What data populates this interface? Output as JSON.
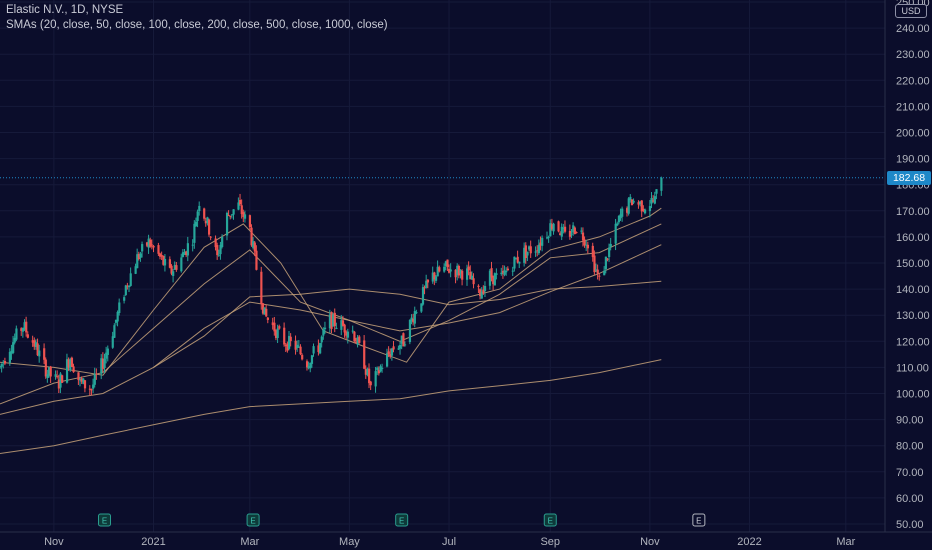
{
  "header": {
    "title": "Elastic N.V., 1D, NYSE",
    "indicators": "SMAs (20, close, 50, close, 100, close, 200, close, 500, close, 1000, close)"
  },
  "price_axis": {
    "currency": "USD",
    "last_price_label": "182.68"
  },
  "colors": {
    "background": "#0b0d2b",
    "up": "#26a69a",
    "down": "#ef5350",
    "sma": "#c8a37a",
    "axis_text": "#b2b5be",
    "price_tag": "#1e88c8"
  },
  "chart_data": {
    "type": "candlestick",
    "yaxis": {
      "min": 50,
      "max": 250,
      "ticks": [
        "50.00",
        "60.00",
        "70.00",
        "80.00",
        "90.00",
        "100.00",
        "110.00",
        "120.00",
        "130.00",
        "140.00",
        "150.00",
        "160.00",
        "170.00",
        "180.00",
        "190.00",
        "200.00",
        "210.00",
        "220.00",
        "230.00",
        "240.00",
        "250.00"
      ]
    },
    "xaxis": {
      "ticks": [
        "Nov",
        "2021",
        "Mar",
        "May",
        "Jul",
        "Sep",
        "Nov",
        "2022",
        "Mar"
      ],
      "tick_dates": [
        "2020-11-01",
        "2021-01-01",
        "2021-03-01",
        "2021-05-01",
        "2021-07-01",
        "2021-09-01",
        "2021-11-01",
        "2022-01-01",
        "2022-03-01"
      ],
      "range": [
        "2020-09-29",
        "2022-03-25"
      ]
    },
    "last_price": 182.68,
    "earnings_markers": [
      {
        "date": "2020-12-02",
        "label": "E",
        "type": "past"
      },
      {
        "date": "2021-03-03",
        "label": "E",
        "type": "past"
      },
      {
        "date": "2021-06-02",
        "label": "E",
        "type": "past"
      },
      {
        "date": "2021-09-01",
        "label": "E",
        "type": "past"
      },
      {
        "date": "2021-12-01",
        "label": "E",
        "type": "upcoming"
      }
    ],
    "price_path": [
      [
        "2020-09-29",
        110
      ],
      [
        "2020-10-05",
        118
      ],
      [
        "2020-10-13",
        126
      ],
      [
        "2020-10-20",
        119
      ],
      [
        "2020-10-28",
        108
      ],
      [
        "2020-11-04",
        104
      ],
      [
        "2020-11-11",
        114
      ],
      [
        "2020-11-17",
        104
      ],
      [
        "2020-11-24",
        102
      ],
      [
        "2020-12-01",
        112
      ],
      [
        "2020-12-08",
        126
      ],
      [
        "2020-12-15",
        141
      ],
      [
        "2020-12-22",
        152
      ],
      [
        "2020-12-29",
        158
      ],
      [
        "2021-01-05",
        152
      ],
      [
        "2021-01-11",
        146
      ],
      [
        "2021-01-18",
        152
      ],
      [
        "2021-01-25",
        160
      ],
      [
        "2021-01-29",
        174
      ],
      [
        "2021-02-04",
        163
      ],
      [
        "2021-02-09",
        152
      ],
      [
        "2021-02-15",
        168
      ],
      [
        "2021-02-22",
        172
      ],
      [
        "2021-03-01",
        163
      ],
      [
        "2021-03-05",
        148
      ],
      [
        "2021-03-10",
        130
      ],
      [
        "2021-03-16",
        125
      ],
      [
        "2021-03-22",
        120
      ],
      [
        "2021-03-29",
        118
      ],
      [
        "2021-04-05",
        112
      ],
      [
        "2021-04-12",
        118
      ],
      [
        "2021-04-19",
        128
      ],
      [
        "2021-04-26",
        126
      ],
      [
        "2021-05-03",
        124
      ],
      [
        "2021-05-10",
        112
      ],
      [
        "2021-05-14",
        102
      ],
      [
        "2021-05-20",
        110
      ],
      [
        "2021-05-27",
        117
      ],
      [
        "2021-06-03",
        120
      ],
      [
        "2021-06-09",
        130
      ],
      [
        "2021-06-15",
        138
      ],
      [
        "2021-06-21",
        145
      ],
      [
        "2021-06-29",
        148
      ],
      [
        "2021-07-06",
        147
      ],
      [
        "2021-07-12",
        146
      ],
      [
        "2021-07-19",
        138
      ],
      [
        "2021-07-26",
        145
      ],
      [
        "2021-08-02",
        144
      ],
      [
        "2021-08-09",
        150
      ],
      [
        "2021-08-16",
        154
      ],
      [
        "2021-08-23",
        156
      ],
      [
        "2021-08-30",
        162
      ],
      [
        "2021-09-03",
        166
      ],
      [
        "2021-09-10",
        160
      ],
      [
        "2021-09-17",
        164
      ],
      [
        "2021-09-24",
        158
      ],
      [
        "2021-10-01",
        143
      ],
      [
        "2021-10-07",
        155
      ],
      [
        "2021-10-14",
        168
      ],
      [
        "2021-10-21",
        174
      ],
      [
        "2021-10-28",
        172
      ],
      [
        "2021-11-04",
        174
      ],
      [
        "2021-11-08",
        182.68
      ]
    ],
    "sma_lines": [
      {
        "name": "SMA 20",
        "points": [
          [
            "2020-09-29",
            112
          ],
          [
            "2020-11-01",
            110
          ],
          [
            "2020-12-01",
            107
          ],
          [
            "2021-01-01",
            132
          ],
          [
            "2021-02-01",
            156
          ],
          [
            "2021-02-25",
            165
          ],
          [
            "2021-03-20",
            150
          ],
          [
            "2021-04-15",
            124
          ],
          [
            "2021-05-10",
            118
          ],
          [
            "2021-06-05",
            112
          ],
          [
            "2021-07-01",
            135
          ],
          [
            "2021-08-01",
            140
          ],
          [
            "2021-09-01",
            155
          ],
          [
            "2021-10-01",
            160
          ],
          [
            "2021-11-01",
            168
          ],
          [
            "2021-11-08",
            171
          ]
        ]
      },
      {
        "name": "SMA 50",
        "points": [
          [
            "2020-09-29",
            96
          ],
          [
            "2020-11-01",
            104
          ],
          [
            "2020-12-01",
            108
          ],
          [
            "2021-01-01",
            125
          ],
          [
            "2021-02-01",
            142
          ],
          [
            "2021-03-01",
            155
          ],
          [
            "2021-04-01",
            135
          ],
          [
            "2021-05-01",
            128
          ],
          [
            "2021-06-01",
            120
          ],
          [
            "2021-07-01",
            128
          ],
          [
            "2021-08-01",
            138
          ],
          [
            "2021-09-01",
            152
          ],
          [
            "2021-10-01",
            154
          ],
          [
            "2021-11-08",
            165
          ]
        ]
      },
      {
        "name": "SMA 100",
        "points": [
          [
            "2020-09-29",
            92
          ],
          [
            "2020-11-01",
            97
          ],
          [
            "2020-12-01",
            100
          ],
          [
            "2021-01-01",
            110
          ],
          [
            "2021-02-01",
            125
          ],
          [
            "2021-03-01",
            135
          ],
          [
            "2021-04-01",
            132
          ],
          [
            "2021-05-01",
            128
          ],
          [
            "2021-06-01",
            124
          ],
          [
            "2021-07-01",
            127
          ],
          [
            "2021-08-01",
            131
          ],
          [
            "2021-09-01",
            139
          ],
          [
            "2021-10-01",
            146
          ],
          [
            "2021-11-08",
            157
          ]
        ]
      },
      {
        "name": "SMA 200",
        "points": [
          [
            "2021-01-01",
            110
          ],
          [
            "2021-02-01",
            122
          ],
          [
            "2021-03-01",
            137
          ],
          [
            "2021-04-01",
            138
          ],
          [
            "2021-05-01",
            140
          ],
          [
            "2021-06-01",
            138
          ],
          [
            "2021-07-01",
            134
          ],
          [
            "2021-08-01",
            136
          ],
          [
            "2021-09-01",
            140
          ],
          [
            "2021-10-01",
            141
          ],
          [
            "2021-11-08",
            143
          ]
        ]
      },
      {
        "name": "SMA 500",
        "points": [
          [
            "2020-09-29",
            77
          ],
          [
            "2020-11-01",
            80
          ],
          [
            "2020-12-01",
            84
          ],
          [
            "2021-01-01",
            88
          ],
          [
            "2021-02-01",
            92
          ],
          [
            "2021-03-01",
            95
          ],
          [
            "2021-04-01",
            96
          ],
          [
            "2021-05-01",
            97
          ],
          [
            "2021-06-01",
            98
          ],
          [
            "2021-07-01",
            101
          ],
          [
            "2021-08-01",
            103
          ],
          [
            "2021-09-01",
            105
          ],
          [
            "2021-10-01",
            108
          ],
          [
            "2021-11-08",
            113
          ]
        ]
      }
    ]
  }
}
